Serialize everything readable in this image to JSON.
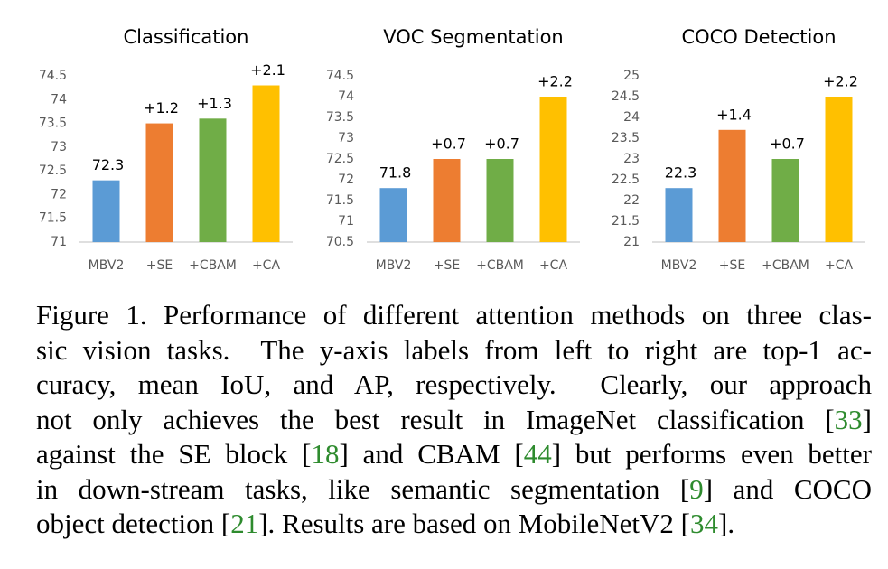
{
  "chart_data": [
    {
      "type": "bar",
      "title": "Classification",
      "categories": [
        "MBV2",
        "+SE",
        "+CBAM",
        "+CA"
      ],
      "values": [
        72.3,
        73.5,
        73.6,
        74.3
      ],
      "annotations": [
        "72.3",
        "+1.2",
        "+1.3",
        "+2.1"
      ],
      "colors": [
        "#5b9bd5",
        "#ed7d31",
        "#70ad47",
        "#ffc000"
      ],
      "ylim": [
        71,
        74.5
      ],
      "yticks": [
        71,
        71.5,
        72,
        72.5,
        73,
        73.5,
        74,
        74.5
      ]
    },
    {
      "type": "bar",
      "title": "VOC Segmentation",
      "categories": [
        "MBV2",
        "+SE",
        "+CBAM",
        "+CA"
      ],
      "values": [
        71.8,
        72.5,
        72.5,
        74.0
      ],
      "annotations": [
        "71.8",
        "+0.7",
        "+0.7",
        "+2.2"
      ],
      "colors": [
        "#5b9bd5",
        "#ed7d31",
        "#70ad47",
        "#ffc000"
      ],
      "ylim": [
        70.5,
        74.5
      ],
      "yticks": [
        70.5,
        71,
        71.5,
        72,
        72.5,
        73,
        73.5,
        74,
        74.5
      ]
    },
    {
      "type": "bar",
      "title": "COCO Detection",
      "categories": [
        "MBV2",
        "+SE",
        "+CBAM",
        "+CA"
      ],
      "values": [
        22.3,
        23.7,
        23.0,
        24.5
      ],
      "annotations": [
        "22.3",
        "+1.4",
        "+0.7",
        "+2.2"
      ],
      "colors": [
        "#5b9bd5",
        "#ed7d31",
        "#70ad47",
        "#ffc000"
      ],
      "ylim": [
        21,
        25
      ],
      "yticks": [
        21,
        21.5,
        22,
        22.5,
        23,
        23.5,
        24,
        24.5,
        25
      ]
    }
  ],
  "caption": {
    "lines": [
      [
        "Figure 1. Performance of different attention methods on three clas-"
      ],
      [
        "sic vision tasks.  The y-axis labels from left to right are top-1 ac-"
      ],
      [
        "curacy, mean IoU, and AP, respectively.  Clearly, our approach"
      ],
      [
        "not only achieves the best result in ImageNet classification [",
        "33",
        "]"
      ],
      [
        "against the SE block [",
        "18",
        "] and CBAM [",
        "44",
        "] but performs even better"
      ],
      [
        "in down-stream tasks, like semantic segmentation [",
        "9",
        "] and COCO"
      ],
      [
        "object detection [",
        "21",
        "]. Results are based on MobileNetV2 [",
        "34",
        "]."
      ]
    ]
  }
}
